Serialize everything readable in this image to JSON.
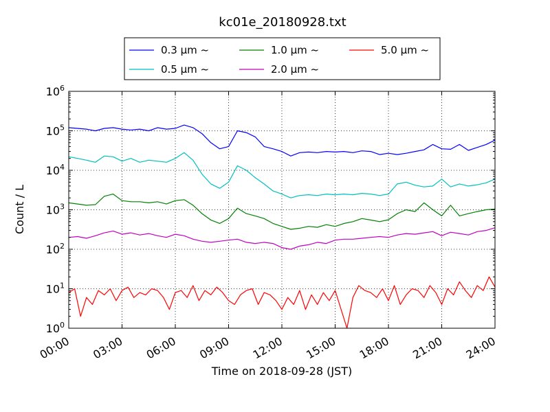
{
  "chart_data": {
    "type": "line",
    "title": "kc01e_20180928.txt",
    "xlabel": "Time on 2018-09-28 (JST)",
    "ylabel": "Count / L",
    "yscale": "log",
    "ylim": [
      1,
      1000000
    ],
    "xlim": [
      "00:00",
      "24:00"
    ],
    "grid": true,
    "legend_position": "top",
    "x_ticks": [
      "00:00",
      "03:00",
      "06:00",
      "09:00",
      "12:00",
      "15:00",
      "18:00",
      "21:00",
      "24:00"
    ],
    "y_ticks": [
      {
        "value": 1,
        "base": "10",
        "exp": "0"
      },
      {
        "value": 10,
        "base": "10",
        "exp": "1"
      },
      {
        "value": 100,
        "base": "10",
        "exp": "2"
      },
      {
        "value": 1000,
        "base": "10",
        "exp": "3"
      },
      {
        "value": 10000,
        "base": "10",
        "exp": "4"
      },
      {
        "value": 100000,
        "base": "10",
        "exp": "5"
      },
      {
        "value": 1000000,
        "base": "10",
        "exp": "6"
      }
    ],
    "series": [
      {
        "name": "0.3 μm ~",
        "color": "#0000ff",
        "x": [
          "00:00",
          "00:30",
          "01:00",
          "01:30",
          "02:00",
          "02:30",
          "03:00",
          "03:30",
          "04:00",
          "04:30",
          "05:00",
          "05:30",
          "06:00",
          "06:30",
          "07:00",
          "07:30",
          "08:00",
          "08:30",
          "09:00",
          "09:30",
          "10:00",
          "10:30",
          "11:00",
          "11:30",
          "12:00",
          "12:30",
          "13:00",
          "13:30",
          "14:00",
          "14:30",
          "15:00",
          "15:30",
          "16:00",
          "16:30",
          "17:00",
          "17:30",
          "18:00",
          "18:30",
          "19:00",
          "19:30",
          "20:00",
          "20:30",
          "21:00",
          "21:30",
          "22:00",
          "22:30",
          "23:00",
          "23:30",
          "24:00"
        ],
        "values": [
          120000,
          115000,
          110000,
          100000,
          115000,
          120000,
          110000,
          105000,
          110000,
          100000,
          120000,
          110000,
          115000,
          140000,
          120000,
          85000,
          50000,
          35000,
          40000,
          100000,
          90000,
          70000,
          40000,
          35000,
          30000,
          23000,
          28000,
          29000,
          28000,
          30000,
          29000,
          30000,
          28000,
          31000,
          30000,
          25000,
          27000,
          25000,
          27000,
          30000,
          33000,
          45000,
          35000,
          34000,
          45000,
          32000,
          38000,
          45000,
          58000
        ]
      },
      {
        "name": "0.5 μm ~",
        "color": "#00bfbf",
        "x": [
          "00:00",
          "00:30",
          "01:00",
          "01:30",
          "02:00",
          "02:30",
          "03:00",
          "03:30",
          "04:00",
          "04:30",
          "05:00",
          "05:30",
          "06:00",
          "06:30",
          "07:00",
          "07:30",
          "08:00",
          "08:30",
          "09:00",
          "09:30",
          "10:00",
          "10:30",
          "11:00",
          "11:30",
          "12:00",
          "12:30",
          "13:00",
          "13:30",
          "14:00",
          "14:30",
          "15:00",
          "15:30",
          "16:00",
          "16:30",
          "17:00",
          "17:30",
          "18:00",
          "18:30",
          "19:00",
          "19:30",
          "20:00",
          "20:30",
          "21:00",
          "21:30",
          "22:00",
          "22:30",
          "23:00",
          "23:30",
          "24:00"
        ],
        "values": [
          22000,
          20000,
          18000,
          16000,
          23000,
          22000,
          17000,
          20000,
          16000,
          18000,
          17000,
          16000,
          20000,
          28000,
          18000,
          8000,
          4500,
          3500,
          5000,
          13000,
          10000,
          6500,
          4500,
          3000,
          2500,
          2000,
          2300,
          2400,
          2300,
          2500,
          2400,
          2500,
          2400,
          2600,
          2500,
          2300,
          2500,
          4500,
          5000,
          4200,
          3800,
          4000,
          6000,
          3800,
          4500,
          4000,
          4300,
          4800,
          6000
        ]
      },
      {
        "name": "1.0 μm ~",
        "color": "#008000",
        "x": [
          "00:00",
          "00:30",
          "01:00",
          "01:30",
          "02:00",
          "02:30",
          "03:00",
          "03:30",
          "04:00",
          "04:30",
          "05:00",
          "05:30",
          "06:00",
          "06:30",
          "07:00",
          "07:30",
          "08:00",
          "08:30",
          "09:00",
          "09:30",
          "10:00",
          "10:30",
          "11:00",
          "11:30",
          "12:00",
          "12:30",
          "13:00",
          "13:30",
          "14:00",
          "14:30",
          "15:00",
          "15:30",
          "16:00",
          "16:30",
          "17:00",
          "17:30",
          "18:00",
          "18:30",
          "19:00",
          "19:30",
          "20:00",
          "20:30",
          "21:00",
          "21:30",
          "22:00",
          "22:30",
          "23:00",
          "23:30",
          "24:00"
        ],
        "values": [
          1500,
          1400,
          1300,
          1350,
          2200,
          2500,
          1700,
          1600,
          1600,
          1500,
          1600,
          1400,
          1700,
          1800,
          1300,
          800,
          550,
          450,
          600,
          1100,
          800,
          700,
          600,
          450,
          380,
          320,
          340,
          380,
          360,
          420,
          380,
          450,
          500,
          600,
          550,
          500,
          560,
          800,
          1000,
          900,
          1500,
          1000,
          700,
          1300,
          700,
          800,
          900,
          1000,
          1050
        ]
      },
      {
        "name": "2.0 μm ~",
        "color": "#bf00bf",
        "x": [
          "00:00",
          "00:30",
          "01:00",
          "01:30",
          "02:00",
          "02:30",
          "03:00",
          "03:30",
          "04:00",
          "04:30",
          "05:00",
          "05:30",
          "06:00",
          "06:30",
          "07:00",
          "07:30",
          "08:00",
          "08:30",
          "09:00",
          "09:30",
          "10:00",
          "10:30",
          "11:00",
          "11:30",
          "12:00",
          "12:30",
          "13:00",
          "13:30",
          "14:00",
          "14:30",
          "15:00",
          "15:30",
          "16:00",
          "16:30",
          "17:00",
          "17:30",
          "18:00",
          "18:30",
          "19:00",
          "19:30",
          "20:00",
          "20:30",
          "21:00",
          "21:30",
          "22:00",
          "22:30",
          "23:00",
          "23:30",
          "24:00"
        ],
        "values": [
          200,
          210,
          190,
          220,
          260,
          290,
          240,
          260,
          230,
          250,
          220,
          200,
          240,
          220,
          180,
          160,
          150,
          160,
          170,
          180,
          150,
          140,
          150,
          140,
          110,
          100,
          120,
          130,
          150,
          140,
          170,
          180,
          180,
          190,
          200,
          210,
          200,
          230,
          250,
          240,
          260,
          280,
          220,
          270,
          250,
          230,
          280,
          300,
          350
        ]
      },
      {
        "name": "5.0 μm ~",
        "color": "#ff0000",
        "x": [
          "00:00",
          "00:20",
          "00:40",
          "01:00",
          "01:20",
          "01:40",
          "02:00",
          "02:20",
          "02:40",
          "03:00",
          "03:20",
          "03:40",
          "04:00",
          "04:20",
          "04:40",
          "05:00",
          "05:20",
          "05:40",
          "06:00",
          "06:20",
          "06:40",
          "07:00",
          "07:20",
          "07:40",
          "08:00",
          "08:20",
          "08:40",
          "09:00",
          "09:20",
          "09:40",
          "10:00",
          "10:20",
          "10:40",
          "11:00",
          "11:20",
          "11:40",
          "12:00",
          "12:20",
          "12:40",
          "13:00",
          "13:20",
          "13:40",
          "14:00",
          "14:20",
          "14:40",
          "15:00",
          "15:20",
          "15:40",
          "16:00",
          "16:20",
          "16:40",
          "17:00",
          "17:20",
          "17:40",
          "18:00",
          "18:20",
          "18:40",
          "19:00",
          "19:20",
          "19:40",
          "20:00",
          "20:20",
          "20:40",
          "21:00",
          "21:20",
          "21:40",
          "22:00",
          "22:20",
          "22:40",
          "23:00",
          "23:20",
          "23:40",
          "24:00"
        ],
        "values": [
          8,
          10,
          2,
          6,
          4,
          9,
          7,
          10,
          5,
          9,
          11,
          6,
          8,
          7,
          10,
          9,
          6,
          3,
          8,
          9,
          6,
          12,
          5,
          9,
          7,
          11,
          8,
          5,
          4,
          7,
          9,
          10,
          4,
          8,
          7,
          5,
          3,
          6,
          4,
          9,
          3,
          7,
          4,
          8,
          5,
          9,
          3,
          1,
          6,
          12,
          9,
          8,
          6,
          10,
          5,
          12,
          4,
          7,
          10,
          9,
          6,
          12,
          8,
          4,
          10,
          7,
          15,
          9,
          6,
          12,
          9,
          20,
          11
        ]
      }
    ]
  }
}
